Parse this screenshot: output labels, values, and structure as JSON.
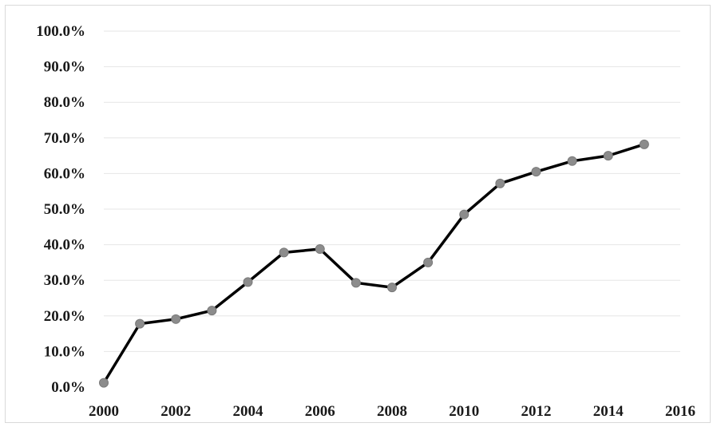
{
  "chart_data": {
    "type": "line",
    "title": "",
    "xlabel": "",
    "ylabel": "",
    "x": [
      2000,
      2001,
      2002,
      2003,
      2004,
      2005,
      2006,
      2007,
      2008,
      2009,
      2010,
      2011,
      2012,
      2013,
      2014,
      2015
    ],
    "series": [
      {
        "values": [
          1.2,
          17.8,
          19.1,
          21.5,
          29.5,
          37.8,
          38.8,
          29.3,
          28.0,
          35.0,
          48.5,
          57.2,
          60.5,
          63.5,
          65.0,
          68.2
        ]
      }
    ],
    "xlim": [
      2000,
      2016
    ],
    "ylim": [
      0,
      100
    ],
    "x_ticks": [
      "2000",
      "2002",
      "2004",
      "2006",
      "2008",
      "2010",
      "2012",
      "2014",
      "2016"
    ],
    "y_ticks": [
      "0.0%",
      "10.0%",
      "20.0%",
      "30.0%",
      "40.0%",
      "50.0%",
      "60.0%",
      "70.0%",
      "80.0%",
      "90.0%",
      "100.0%"
    ],
    "grid": true,
    "legend": "none",
    "colors": {
      "line": "#000000",
      "marker": "#8c8c8c",
      "grid": "#e6e6e6"
    }
  }
}
